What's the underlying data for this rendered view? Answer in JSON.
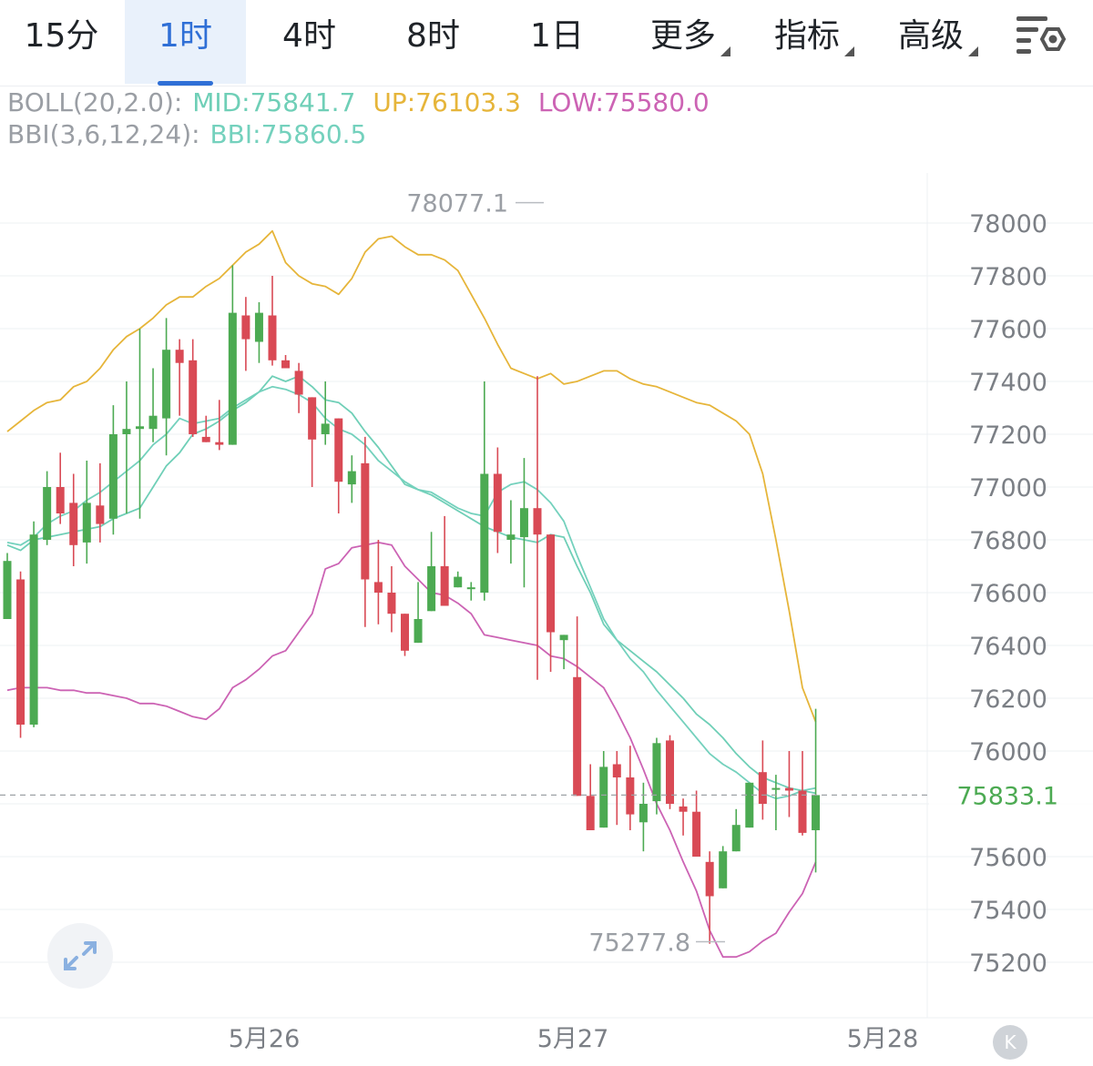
{
  "tabs": [
    {
      "label": "15分",
      "active": false,
      "has_menu": false
    },
    {
      "label": "1时",
      "active": true,
      "has_menu": false
    },
    {
      "label": "4时",
      "active": false,
      "has_menu": false
    },
    {
      "label": "8时",
      "active": false,
      "has_menu": false
    },
    {
      "label": "1日",
      "active": false,
      "has_menu": false
    },
    {
      "label": "更多",
      "active": false,
      "has_menu": true
    },
    {
      "label": "指标",
      "active": false,
      "has_menu": true
    },
    {
      "label": "高级",
      "active": false,
      "has_menu": true
    }
  ],
  "settings_icon": "chart-settings-icon",
  "indicators": {
    "boll": {
      "name": "BOLL(20,2.0):",
      "mid": "MID:75841.7",
      "up": "UP:76103.3",
      "low": "LOW:75580.0"
    },
    "bbi": {
      "name": "BBI(3,6,12,24):",
      "value": "BBI:75860.5"
    }
  },
  "colors": {
    "up": "#4caa52",
    "down": "#d94a55",
    "boll_up": "#e6b53a",
    "boll_mid": "#6fcfb7",
    "boll_low": "#cc63b4",
    "bbi": "#74d1bd",
    "grid": "#eef0f3",
    "axis_text": "#7b7f85",
    "price_tag": "#4caa52"
  },
  "chart_data": {
    "type": "candlestick",
    "timeframe": "1时",
    "ylim": [
      75000,
      78300
    ],
    "y_ticks": [
      78000,
      77800,
      77600,
      77400,
      77200,
      77000,
      76800,
      76600,
      76400,
      76200,
      76000,
      75600,
      75400,
      75200
    ],
    "x_ticks": [
      "5月26",
      "5月27",
      "5月28"
    ],
    "high_label": "78077.1",
    "low_label": "75277.8",
    "last_price": 75833.1,
    "last_price_label": "75833.1",
    "candles": [
      [
        76500,
        76720,
        76750,
        76550
      ],
      [
        76650,
        76100,
        76680,
        76050
      ],
      [
        76100,
        76820,
        76870,
        76090
      ],
      [
        76800,
        77000,
        77060,
        76780
      ],
      [
        77000,
        76900,
        77130,
        76860
      ],
      [
        76940,
        76780,
        77050,
        76700
      ],
      [
        76790,
        76940,
        77100,
        76710
      ],
      [
        76930,
        76860,
        77090,
        76790
      ],
      [
        76880,
        77200,
        77310,
        76820
      ],
      [
        77200,
        77220,
        77400,
        76900
      ],
      [
        77220,
        77230,
        77600,
        76880
      ],
      [
        77220,
        77270,
        77450,
        77170
      ],
      [
        77260,
        77520,
        77640,
        77120
      ],
      [
        77520,
        77470,
        77560,
        77270
      ],
      [
        77480,
        77200,
        77560,
        77190
      ],
      [
        77190,
        77170,
        77270,
        77170
      ],
      [
        77170,
        77160,
        77330,
        77140
      ],
      [
        77160,
        77660,
        77840,
        77180
      ],
      [
        77650,
        77560,
        77720,
        77440
      ],
      [
        77550,
        77660,
        77700,
        77470
      ],
      [
        77650,
        77480,
        77800,
        77460
      ],
      [
        77480,
        77450,
        77500,
        77450
      ],
      [
        77440,
        77350,
        77470,
        77280
      ],
      [
        77340,
        77180,
        77340,
        77000
      ],
      [
        77200,
        77240,
        77400,
        77160
      ],
      [
        77260,
        77020,
        77260,
        76900
      ],
      [
        77010,
        77060,
        77120,
        76940
      ],
      [
        77090,
        76650,
        77190,
        76470
      ],
      [
        76640,
        76600,
        76800,
        76480
      ],
      [
        76600,
        76520,
        76700,
        76450
      ],
      [
        76520,
        76380,
        76460,
        76360
      ],
      [
        76410,
        76500,
        76640,
        76470
      ],
      [
        76530,
        76700,
        76830,
        76580
      ],
      [
        76700,
        76550,
        76890,
        76590
      ],
      [
        76620,
        76660,
        76680,
        76620
      ],
      [
        76620,
        76620,
        76640,
        76570
      ],
      [
        76600,
        77050,
        77400,
        76570
      ],
      [
        77050,
        76830,
        77150,
        76750
      ],
      [
        76800,
        76820,
        76950,
        76710
      ],
      [
        76810,
        76920,
        77110,
        76620
      ],
      [
        76920,
        76820,
        77420,
        76270
      ],
      [
        76820,
        76450,
        76680,
        76300
      ],
      [
        76420,
        76440,
        76400,
        76310
      ],
      [
        76280,
        75830,
        76510,
        75900
      ],
      [
        75830,
        75700,
        75950,
        75710
      ],
      [
        75710,
        75940,
        76000,
        75730
      ],
      [
        75950,
        75900,
        76000,
        75720
      ],
      [
        75900,
        75760,
        76020,
        75700
      ],
      [
        75730,
        75800,
        75880,
        75620
      ],
      [
        75810,
        76030,
        76050,
        75760
      ],
      [
        76040,
        75800,
        76060,
        75780
      ],
      [
        75790,
        75770,
        75820,
        75680
      ],
      [
        75770,
        75600,
        75850,
        75600
      ],
      [
        75580,
        75450,
        75620,
        75270
      ],
      [
        75480,
        75620,
        75640,
        75620
      ],
      [
        75620,
        75720,
        75780,
        75680
      ],
      [
        75710,
        75880,
        75880,
        75760
      ],
      [
        75920,
        75800,
        76040,
        75740
      ],
      [
        75860,
        75860,
        75910,
        75700
      ],
      [
        75860,
        75850,
        76000,
        75750
      ],
      [
        75850,
        75690,
        76000,
        75680
      ],
      [
        75700,
        75833,
        76160,
        75540
      ]
    ],
    "series": [
      {
        "name": "UP",
        "values": [
          77210,
          77250,
          77290,
          77320,
          77330,
          77380,
          77400,
          77450,
          77520,
          77570,
          77600,
          77640,
          77690,
          77720,
          77720,
          77760,
          77790,
          77840,
          77890,
          77920,
          77970,
          77850,
          77800,
          77770,
          77760,
          77730,
          77790,
          77890,
          77940,
          77950,
          77910,
          77880,
          77880,
          77860,
          77820,
          77730,
          77640,
          77540,
          77450,
          77430,
          77410,
          77430,
          77390,
          77400,
          77420,
          77440,
          77440,
          77410,
          77390,
          77380,
          77360,
          77340,
          77320,
          77310,
          77280,
          77250,
          77200,
          77050,
          76800,
          76530,
          76240,
          76110
        ]
      },
      {
        "name": "MID",
        "values": [
          76780,
          76760,
          76800,
          76810,
          76820,
          76830,
          76840,
          76850,
          76880,
          76900,
          76920,
          77000,
          77080,
          77130,
          77200,
          77220,
          77250,
          77290,
          77320,
          77360,
          77420,
          77400,
          77420,
          77380,
          77330,
          77320,
          77280,
          77210,
          77150,
          77080,
          77010,
          76990,
          76970,
          76940,
          76910,
          76880,
          76850,
          76830,
          76810,
          76800,
          76790,
          76820,
          76810,
          76700,
          76600,
          76480,
          76420,
          76380,
          76340,
          76300,
          76250,
          76200,
          76140,
          76100,
          76050,
          75990,
          75940,
          75900,
          75880,
          75860,
          75850,
          75840
        ]
      },
      {
        "name": "LOW",
        "values": [
          76230,
          76240,
          76240,
          76240,
          76230,
          76230,
          76220,
          76220,
          76210,
          76200,
          76180,
          76180,
          76170,
          76150,
          76130,
          76120,
          76160,
          76240,
          76270,
          76310,
          76360,
          76380,
          76450,
          76520,
          76690,
          76710,
          76770,
          76780,
          76790,
          76780,
          76700,
          76650,
          76600,
          76590,
          76560,
          76520,
          76440,
          76430,
          76420,
          76410,
          76400,
          76360,
          76350,
          76320,
          76280,
          76240,
          76150,
          76050,
          75930,
          75800,
          75700,
          75580,
          75470,
          75320,
          75220,
          75220,
          75240,
          75280,
          75310,
          75390,
          75460,
          75580
        ]
      },
      {
        "name": "BBI",
        "values": [
          76790,
          76780,
          76810,
          76860,
          76890,
          76910,
          76950,
          76980,
          77020,
          77060,
          77100,
          77160,
          77200,
          77260,
          77240,
          77250,
          77260,
          77300,
          77330,
          77360,
          77380,
          77370,
          77350,
          77320,
          77260,
          77220,
          77200,
          77160,
          77100,
          77060,
          77020,
          76990,
          76980,
          76950,
          76920,
          76900,
          76890,
          76980,
          77010,
          77020,
          76990,
          76940,
          76870,
          76740,
          76620,
          76500,
          76420,
          76350,
          76300,
          76230,
          76170,
          76110,
          76050,
          75990,
          75950,
          75920,
          75880,
          75840,
          75820,
          75830,
          75850,
          75860
        ]
      }
    ]
  }
}
